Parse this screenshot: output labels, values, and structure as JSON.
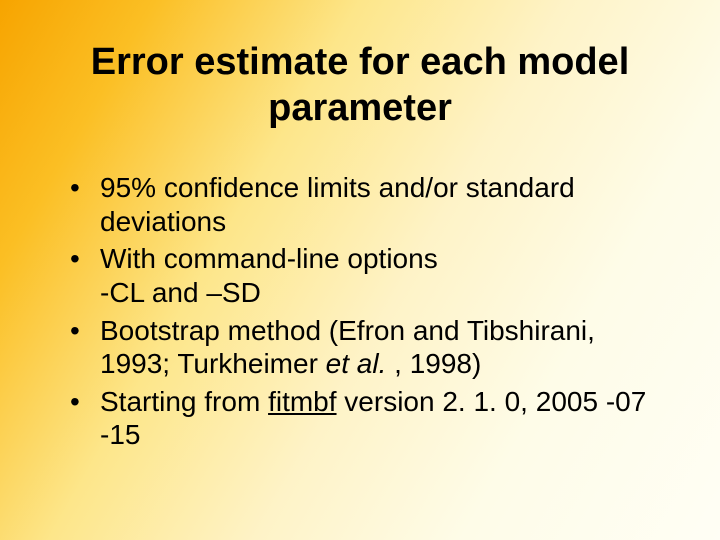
{
  "slide": {
    "title": "Error estimate for each model parameter",
    "bullets": [
      {
        "text": "95% confidence limits  and/or  standard deviations"
      },
      {
        "prefix": "With command-line options",
        "line2": "-CL and –SD"
      },
      {
        "prefix": "Bootstrap method (Efron and Tibshirani, 1993; Turkheimer ",
        "italic": "et al.",
        "suffix": " , 1998)"
      },
      {
        "prefix": "Starting from ",
        "underline": "fitmbf",
        "suffix": " version 2. 1. 0, 2005 -07 -15"
      }
    ],
    "style": {
      "background_gradient": [
        "#f7a400",
        "#fbbf24",
        "#fde68a",
        "#fef3c7",
        "#fefce8",
        "#fffef5"
      ],
      "title_fontsize": 38,
      "body_fontsize": 28,
      "text_color": "#000000",
      "font_family": "Arial"
    }
  }
}
